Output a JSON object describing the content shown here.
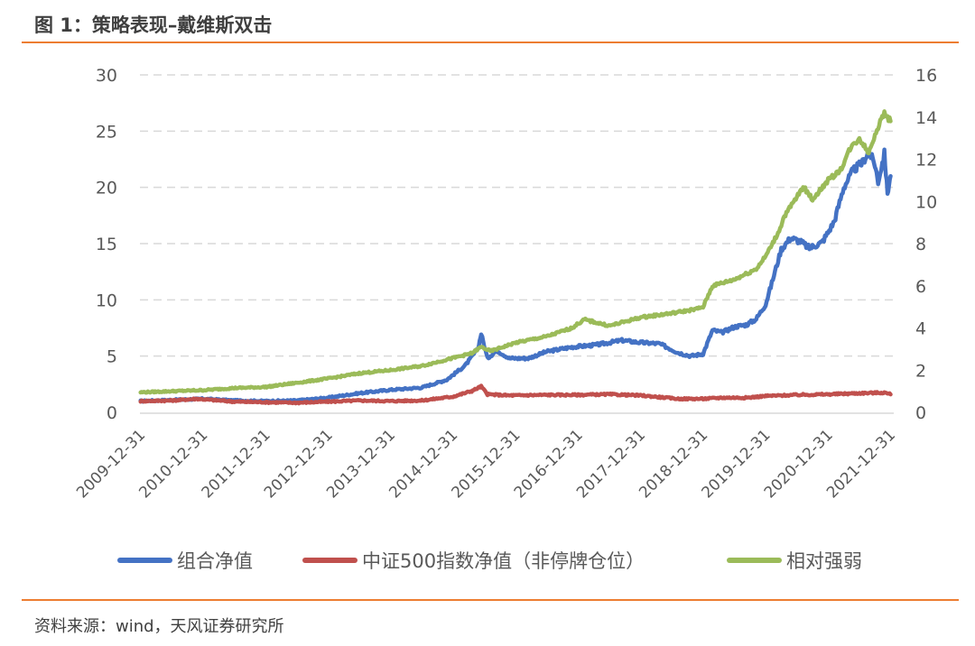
{
  "figure_title": "图 1：策略表现–戴维斯双击",
  "source": "资料来源：wind，天风证券研究所",
  "colors": {
    "accent_rule": "#ed7d31",
    "portfolio": "#4472c4",
    "index": "#c0504d",
    "relative": "#9bbb59",
    "grid": "#d9d9d9"
  },
  "chart_data": {
    "type": "line",
    "title": "",
    "grid": true,
    "legend_position": "bottom",
    "x_ticks": [
      "2009-12-31",
      "2010-12-31",
      "2011-12-31",
      "2012-12-31",
      "2013-12-31",
      "2014-12-31",
      "2015-12-31",
      "2016-12-31",
      "2017-12-31",
      "2018-12-31",
      "2019-12-31",
      "2020-12-31",
      "2021-12-31"
    ],
    "x_range": [
      2009.99,
      2022.05
    ],
    "y_left": {
      "range": [
        0,
        30
      ],
      "ticks": [
        "0",
        "5",
        "10",
        "15",
        "20",
        "25",
        "30"
      ]
    },
    "y_right": {
      "range": [
        0,
        16
      ],
      "ticks": [
        "0",
        "2",
        "4",
        "6",
        "8",
        "10",
        "12",
        "14",
        "16"
      ]
    },
    "series": [
      {
        "name": "组合净值",
        "axis": "left",
        "color": "#4472c4",
        "points": [
          [
            2010.0,
            1.0
          ],
          [
            2010.5,
            1.1
          ],
          [
            2011.0,
            1.2
          ],
          [
            2011.5,
            1.05
          ],
          [
            2012.0,
            1.0
          ],
          [
            2012.5,
            1.05
          ],
          [
            2013.0,
            1.3
          ],
          [
            2013.5,
            1.7
          ],
          [
            2014.0,
            2.0
          ],
          [
            2014.5,
            2.2
          ],
          [
            2014.9,
            2.9
          ],
          [
            2015.2,
            4.2
          ],
          [
            2015.4,
            5.7
          ],
          [
            2015.45,
            7.0
          ],
          [
            2015.55,
            4.8
          ],
          [
            2015.7,
            5.5
          ],
          [
            2015.9,
            4.8
          ],
          [
            2016.2,
            4.8
          ],
          [
            2016.5,
            5.4
          ],
          [
            2016.9,
            5.8
          ],
          [
            2017.3,
            6.0
          ],
          [
            2017.7,
            6.4
          ],
          [
            2018.0,
            6.2
          ],
          [
            2018.3,
            6.1
          ],
          [
            2018.6,
            5.3
          ],
          [
            2018.8,
            5.0
          ],
          [
            2019.0,
            5.2
          ],
          [
            2019.15,
            7.3
          ],
          [
            2019.3,
            7.1
          ],
          [
            2019.5,
            7.6
          ],
          [
            2019.7,
            7.8
          ],
          [
            2019.85,
            8.3
          ],
          [
            2020.0,
            9.6
          ],
          [
            2020.1,
            11.5
          ],
          [
            2020.25,
            14.5
          ],
          [
            2020.4,
            15.5
          ],
          [
            2020.55,
            15.2
          ],
          [
            2020.7,
            14.6
          ],
          [
            2020.9,
            15.1
          ],
          [
            2021.0,
            16.0
          ],
          [
            2021.1,
            17.0
          ],
          [
            2021.25,
            20.0
          ],
          [
            2021.4,
            21.5
          ],
          [
            2021.55,
            22.2
          ],
          [
            2021.65,
            23.2
          ],
          [
            2021.75,
            22.0
          ],
          [
            2021.8,
            20.5
          ],
          [
            2021.9,
            23.0
          ],
          [
            2021.95,
            19.5
          ],
          [
            2022.0,
            21.0
          ]
        ]
      },
      {
        "name": "中证500指数净值（非停牌仓位）",
        "axis": "left",
        "color": "#c0504d",
        "points": [
          [
            2010.0,
            1.0
          ],
          [
            2010.5,
            1.05
          ],
          [
            2010.9,
            1.2
          ],
          [
            2011.5,
            0.95
          ],
          [
            2012.0,
            0.9
          ],
          [
            2012.5,
            0.85
          ],
          [
            2013.0,
            0.95
          ],
          [
            2013.5,
            1.05
          ],
          [
            2014.0,
            1.0
          ],
          [
            2014.5,
            1.05
          ],
          [
            2015.0,
            1.4
          ],
          [
            2015.3,
            1.9
          ],
          [
            2015.45,
            2.3
          ],
          [
            2015.55,
            1.6
          ],
          [
            2015.9,
            1.5
          ],
          [
            2016.5,
            1.55
          ],
          [
            2017.0,
            1.55
          ],
          [
            2017.5,
            1.6
          ],
          [
            2018.0,
            1.5
          ],
          [
            2018.6,
            1.2
          ],
          [
            2019.0,
            1.2
          ],
          [
            2019.3,
            1.3
          ],
          [
            2019.7,
            1.3
          ],
          [
            2020.0,
            1.45
          ],
          [
            2020.5,
            1.55
          ],
          [
            2021.0,
            1.6
          ],
          [
            2021.5,
            1.7
          ],
          [
            2021.9,
            1.75
          ],
          [
            2022.0,
            1.6
          ]
        ]
      },
      {
        "name": "相对强弱",
        "axis": "right",
        "color": "#9bbb59",
        "points": [
          [
            2010.0,
            0.95
          ],
          [
            2010.5,
            1.0
          ],
          [
            2011.0,
            1.05
          ],
          [
            2011.5,
            1.15
          ],
          [
            2012.0,
            1.2
          ],
          [
            2012.5,
            1.4
          ],
          [
            2013.0,
            1.6
          ],
          [
            2013.5,
            1.85
          ],
          [
            2014.0,
            2.0
          ],
          [
            2014.5,
            2.2
          ],
          [
            2014.9,
            2.5
          ],
          [
            2015.3,
            2.8
          ],
          [
            2015.45,
            3.1
          ],
          [
            2015.6,
            2.9
          ],
          [
            2016.0,
            3.3
          ],
          [
            2016.5,
            3.6
          ],
          [
            2016.9,
            4.0
          ],
          [
            2017.1,
            4.4
          ],
          [
            2017.5,
            4.1
          ],
          [
            2018.0,
            4.5
          ],
          [
            2018.5,
            4.7
          ],
          [
            2018.9,
            4.9
          ],
          [
            2019.0,
            5.0
          ],
          [
            2019.15,
            6.0
          ],
          [
            2019.5,
            6.3
          ],
          [
            2019.85,
            6.8
          ],
          [
            2020.0,
            7.4
          ],
          [
            2020.2,
            8.5
          ],
          [
            2020.3,
            9.3
          ],
          [
            2020.5,
            10.2
          ],
          [
            2020.6,
            10.7
          ],
          [
            2020.75,
            10.1
          ],
          [
            2021.0,
            11.0
          ],
          [
            2021.2,
            11.5
          ],
          [
            2021.35,
            12.5
          ],
          [
            2021.5,
            13.0
          ],
          [
            2021.65,
            12.3
          ],
          [
            2021.75,
            13.2
          ],
          [
            2021.9,
            14.2
          ],
          [
            2022.0,
            13.8
          ]
        ]
      }
    ]
  }
}
